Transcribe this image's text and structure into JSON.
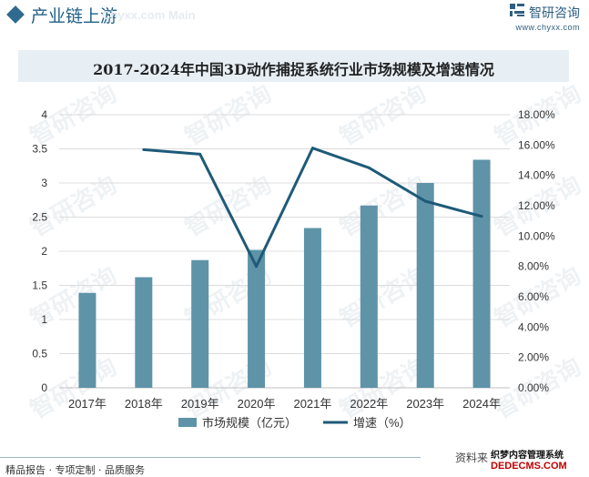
{
  "header": {
    "section_title": "产业链上游",
    "watermark": "Chyxx.com  Main"
  },
  "brand": {
    "name": "智研咨询",
    "url": "www.chyxx.com"
  },
  "footer": {
    "left": "精品报告 · 专项定制 · 品质服务",
    "right": "资料来",
    "corner_line1": "织梦内容管理系统",
    "corner_line2": "DEDECMS.COM"
  },
  "colors": {
    "bar": "#5e93a8",
    "line": "#1e5a78",
    "title_band": "#e7eff5",
    "accent": "#1f5f86"
  },
  "chart_data": {
    "type": "bar",
    "title": "2017-2024年中国3D动作捕捉系统行业市场规模及增速情况",
    "categories": [
      "2017年",
      "2018年",
      "2019年",
      "2020年",
      "2021年",
      "2022年",
      "2023年",
      "2024年"
    ],
    "series": [
      {
        "name": "市场规模（亿元）",
        "type": "bar",
        "axis": "left",
        "values": [
          1.39,
          1.62,
          1.87,
          2.02,
          2.34,
          2.67,
          3.0,
          3.34
        ]
      },
      {
        "name": "增速（%）",
        "type": "line",
        "axis": "right",
        "values": [
          null,
          15.7,
          15.4,
          8.0,
          15.8,
          14.5,
          12.3,
          11.3
        ]
      }
    ],
    "ylim_left": [
      0,
      4
    ],
    "yticks_left": [
      "0",
      "0.5",
      "1",
      "1.5",
      "2",
      "2.5",
      "3",
      "3.5",
      "4"
    ],
    "ylim_right": [
      0,
      18
    ],
    "yticks_right": [
      "0.00%",
      "2.00%",
      "4.00%",
      "6.00%",
      "8.00%",
      "10.00%",
      "12.00%",
      "14.00%",
      "16.00%",
      "18.00%"
    ],
    "grid": true,
    "legend_position": "bottom"
  }
}
